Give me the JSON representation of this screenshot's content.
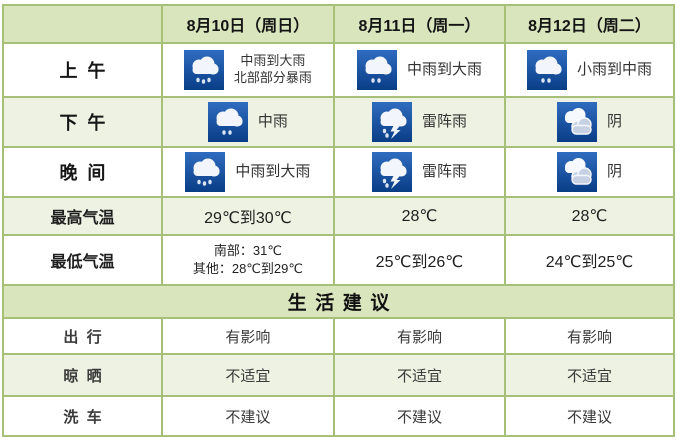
{
  "colors": {
    "header_bg": "#d9e5bd",
    "alt_row_bg": "#eef2e2",
    "grid_border": "#a6c078",
    "icon_blue_top": "#2f6cc0",
    "icon_blue_bottom": "#093d86"
  },
  "chart_data": {
    "type": "table",
    "columns": [
      "",
      "8月10日（周日）",
      "8月11日（周一）",
      "8月12日（周二）"
    ],
    "rows": {
      "morning": {
        "label": "上午",
        "cells": [
          {
            "icon": "rain-heavy-icon",
            "lines": [
              "中雨到大雨",
              "北部部分暴雨"
            ]
          },
          {
            "icon": "rain-icon",
            "lines": [
              "中雨到大雨"
            ]
          },
          {
            "icon": "rain-icon",
            "lines": [
              "小雨到中雨"
            ]
          }
        ]
      },
      "afternoon": {
        "label": "下午",
        "cells": [
          {
            "icon": "rain-icon",
            "lines": [
              "中雨"
            ]
          },
          {
            "icon": "thunderstorm-icon",
            "lines": [
              "雷阵雨"
            ]
          },
          {
            "icon": "overcast-icon",
            "lines": [
              "阴"
            ]
          }
        ]
      },
      "evening": {
        "label": "晚间",
        "cells": [
          {
            "icon": "rain-heavy-icon",
            "lines": [
              "中雨到大雨"
            ]
          },
          {
            "icon": "thunderstorm-icon",
            "lines": [
              "雷阵雨"
            ]
          },
          {
            "icon": "overcast-icon",
            "lines": [
              "阴"
            ]
          }
        ]
      },
      "high_temp": {
        "label": "最高气温",
        "cells": [
          {
            "lines": [
              "29℃到30℃"
            ]
          },
          {
            "lines": [
              "28℃"
            ]
          },
          {
            "lines": [
              "28℃"
            ]
          }
        ]
      },
      "low_temp": {
        "label": "最低气温",
        "cells": [
          {
            "lines": [
              "南部：31℃",
              "其他：28℃到29℃"
            ]
          },
          {
            "lines": [
              "25℃到26℃"
            ]
          },
          {
            "lines": [
              "24℃到25℃"
            ]
          }
        ]
      },
      "section_title": "生活建议",
      "travel": {
        "label": "出行",
        "cells": [
          "有影响",
          "有影响",
          "有影响"
        ]
      },
      "drying": {
        "label": "晾晒",
        "cells": [
          "不适宜",
          "不适宜",
          "不适宜"
        ]
      },
      "car_wash": {
        "label": "洗车",
        "cells": [
          "不建议",
          "不建议",
          "不建议"
        ]
      }
    }
  }
}
